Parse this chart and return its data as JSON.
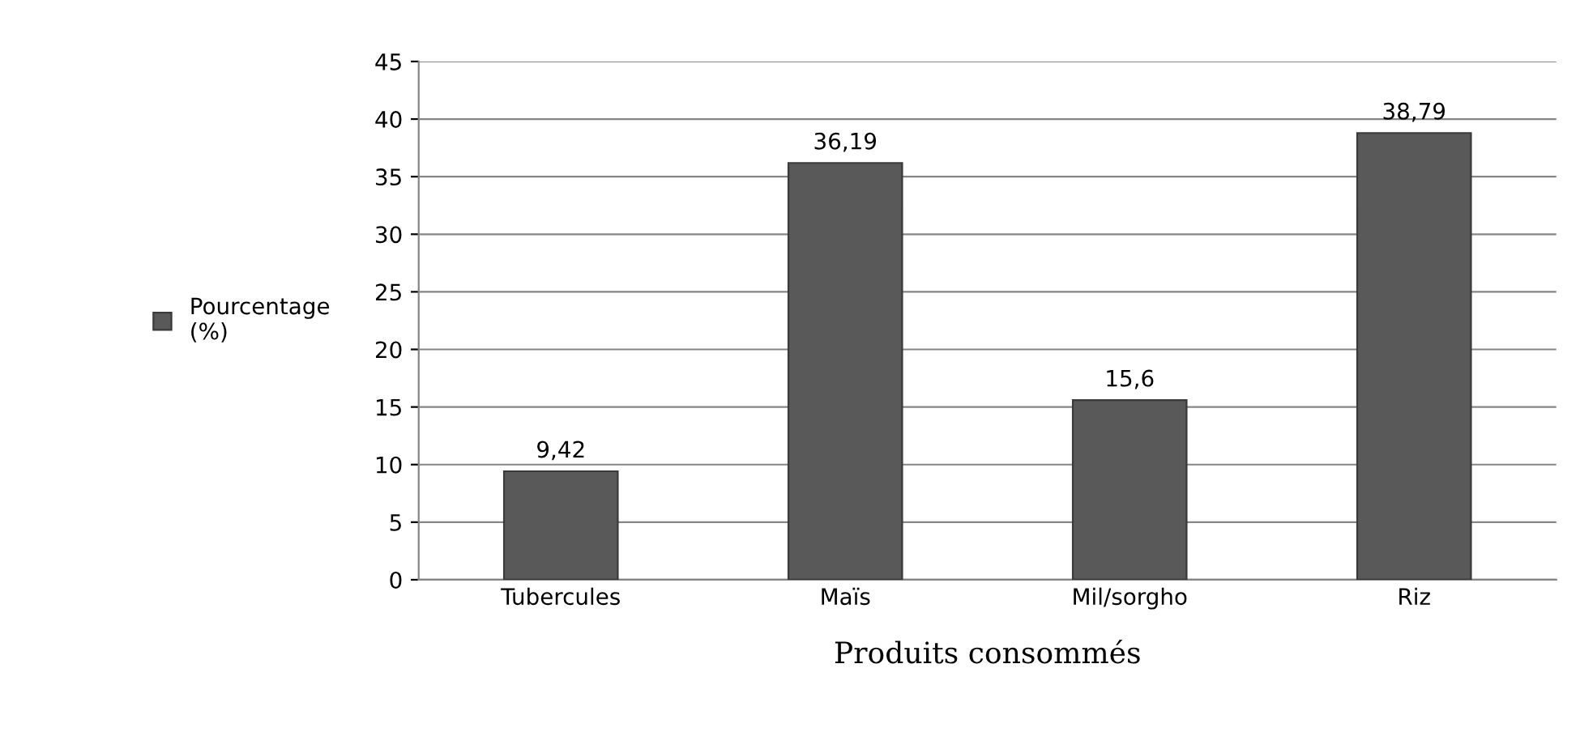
{
  "chart_data": {
    "type": "bar",
    "xlabel": "Produits consommés",
    "categories": [
      "Tubercules",
      "Maïs",
      "Mil/sorgho",
      "Riz"
    ],
    "series": [
      {
        "name": "Pourcentage\n(%)",
        "color": "#595959",
        "values": [
          9.42,
          36.19,
          15.6,
          38.79
        ],
        "value_labels": [
          "9,42",
          "36,19",
          "15,6",
          "38,79"
        ]
      }
    ],
    "ylim": [
      0,
      45
    ],
    "yticks": [
      0,
      5,
      10,
      15,
      20,
      25,
      30,
      35,
      40,
      45
    ],
    "grid": "y",
    "legend": "left"
  }
}
